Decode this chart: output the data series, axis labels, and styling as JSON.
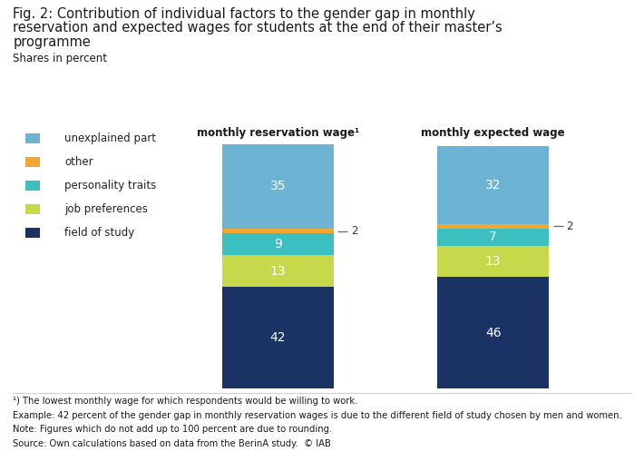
{
  "title_line1": "Fig. 2: Contribution of individual factors to the gender gap in monthly",
  "title_line2": "reservation and expected wages for students at the end of their master’s",
  "title_line3": "programme",
  "subtitle": "Shares in percent",
  "bars": {
    "reservation_wage": {
      "label": "monthly reservation wage¹",
      "field_of_study": 42,
      "job_preferences": 13,
      "personality_traits": 9,
      "other": 2,
      "unexplained_part": 35
    },
    "expected_wage": {
      "label": "monthly expected wage",
      "field_of_study": 46,
      "job_preferences": 13,
      "personality_traits": 7,
      "other": 2,
      "unexplained_part": 32
    }
  },
  "colors": {
    "field_of_study": "#1a3264",
    "job_preferences": "#c8d84b",
    "personality_traits": "#3bbfbf",
    "other": "#f0a830",
    "unexplained_part": "#6db3d4"
  },
  "legend_labels": [
    "unexplained part",
    "other",
    "personality traits",
    "job preferences",
    "field of study"
  ],
  "legend_colors": [
    "#6db3d4",
    "#f0a830",
    "#3bbfbf",
    "#c8d84b",
    "#1a3264"
  ],
  "footnote1": "¹) The lowest monthly wage for which respondents would be willing to work.",
  "footnote2": "Example: 42 percent of the gender gap in monthly reservation wages is due to the different field of study chosen by men and women.",
  "footnote3": "Note: Figures which do not add up to 100 percent are due to rounding.",
  "footnote4": "Source: Own calculations based on data from the BerinA study.  © IAB",
  "bg_color": "#ffffff",
  "text_color": "#222222"
}
